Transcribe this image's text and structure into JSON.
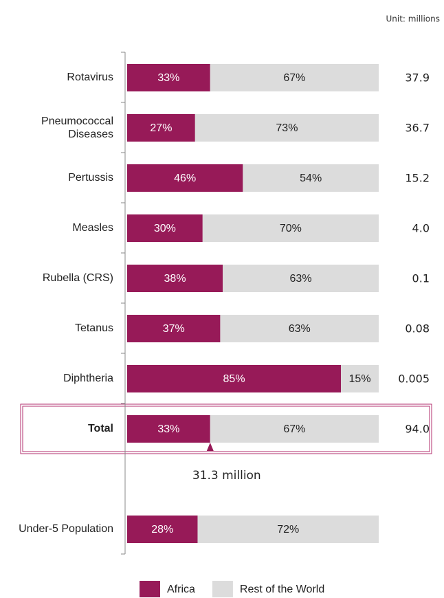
{
  "chart_data": {
    "type": "stacked-bar-horizontal",
    "unit_note": "Unit: millions",
    "categories": [
      "Rotavirus",
      "Pneumococcal Diseases",
      "Pertussis",
      "Measles",
      "Rubella (CRS)",
      "Tetanus",
      "Diphtheria",
      "Total",
      "Under-5 Population"
    ],
    "series": [
      {
        "name": "Africa",
        "color": "#971a58",
        "values": [
          33,
          27,
          46,
          30,
          38,
          37,
          85,
          33,
          28
        ],
        "value_labels": [
          "33%",
          "27%",
          "46%",
          "30%",
          "38%",
          "37%",
          "85%",
          "33%",
          "28%"
        ]
      },
      {
        "name": "Rest of the World",
        "color": "#dcdcdc",
        "values": [
          67,
          73,
          54,
          70,
          63,
          63,
          15,
          67,
          72
        ],
        "value_labels": [
          "67%",
          "73%",
          "54%",
          "70%",
          "63%",
          "63%",
          "15%",
          "67%",
          "72%"
        ]
      }
    ],
    "totals": {
      "values": [
        37.9,
        36.7,
        15.2,
        4.0,
        0.1,
        0.08,
        0.005,
        94.0,
        null
      ],
      "value_labels": [
        "37.9",
        "36.7",
        "15.2",
        "4.0",
        "0.1",
        "0.08",
        "0.005",
        "94.0",
        null
      ]
    },
    "xlim": [
      0,
      100
    ],
    "highlight_category": 7,
    "annotation": "31.3 million"
  }
}
